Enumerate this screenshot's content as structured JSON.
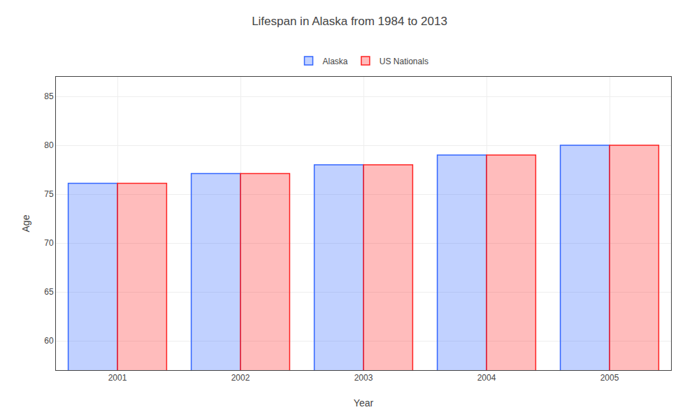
{
  "chart_data": {
    "type": "bar",
    "title": "Lifespan in Alaska from 1984 to 2013",
    "x_label": "Year",
    "y_label": "Age",
    "categories": [
      "2001",
      "2002",
      "2003",
      "2004",
      "2005"
    ],
    "series": [
      {
        "name": "Alaska",
        "color": "#3366ff",
        "values": [
          76.1,
          77.1,
          78.0,
          79.0,
          80.0
        ]
      },
      {
        "name": "US Nationals",
        "color": "#ff2222",
        "values": [
          76.1,
          77.1,
          78.0,
          79.0,
          80.0
        ]
      }
    ],
    "ylim": [
      57,
      87
    ],
    "yticks": [
      60,
      65,
      70,
      75,
      80,
      85
    ],
    "grid": true,
    "legend": "top"
  }
}
